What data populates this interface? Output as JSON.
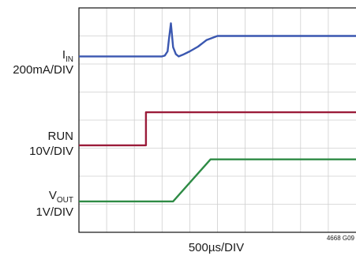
{
  "chart_data": {
    "type": "line",
    "figure_id": "4668 G09",
    "xlabel": "500µs/DIV",
    "grid": true,
    "divisions": {
      "x": 10,
      "y": 8
    },
    "series": [
      {
        "name": "I",
        "name_subscript": "IN",
        "scale": "200mA/DIV",
        "color": "#3a57b0",
        "x": [
          0,
          3.0,
          3.1,
          3.2,
          3.25,
          3.32,
          3.4,
          3.5,
          3.6,
          3.75,
          4.0,
          4.3,
          4.6,
          5.0,
          5.5,
          10
        ],
        "y": [
          6.27,
          6.27,
          6.3,
          6.45,
          6.9,
          7.45,
          6.6,
          6.35,
          6.27,
          6.33,
          6.45,
          6.62,
          6.85,
          7.0,
          7.0,
          7.0
        ]
      },
      {
        "name": "RUN",
        "scale": "10V/DIV",
        "color": "#9b1c3a",
        "x": [
          0,
          2.42,
          2.42,
          10
        ],
        "y": [
          3.1,
          3.1,
          4.28,
          4.28
        ]
      },
      {
        "name": "V",
        "name_subscript": "OUT",
        "scale": "1V/DIV",
        "color": "#2e8b45",
        "x": [
          0,
          3.4,
          4.75,
          10
        ],
        "y": [
          1.1,
          1.1,
          2.6,
          2.6
        ]
      }
    ]
  }
}
